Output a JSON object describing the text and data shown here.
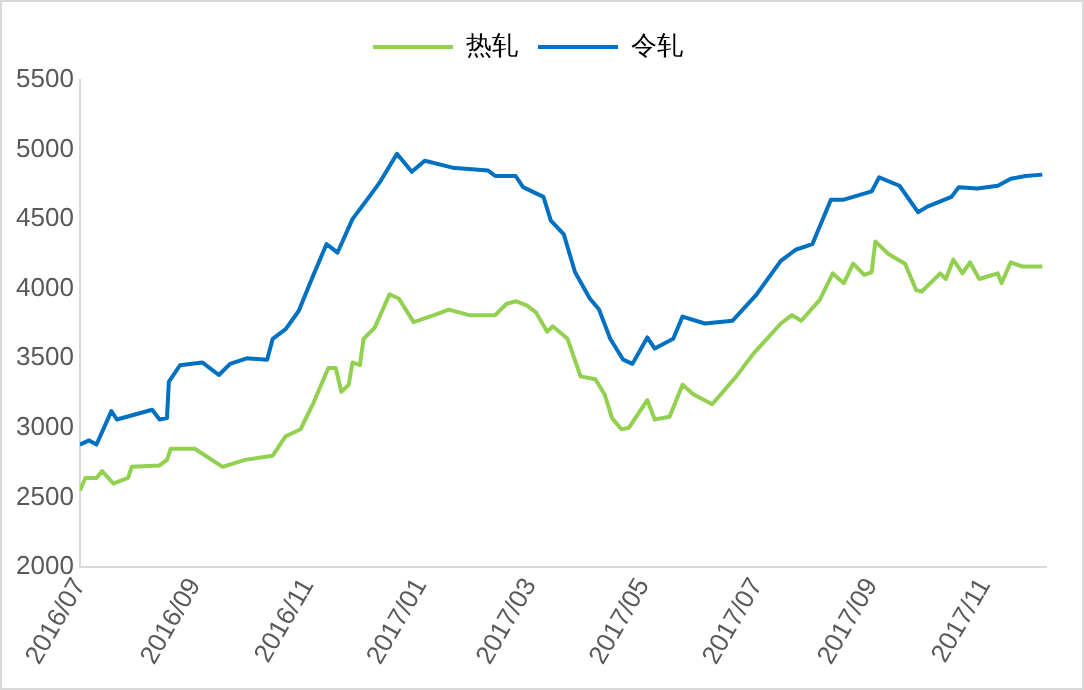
{
  "chart_data": {
    "type": "line",
    "legend": "top",
    "grid": false,
    "marker": "none",
    "line_style": "solid",
    "xlim": [
      "2016-07-01",
      "2017-12-04"
    ],
    "xticks": [
      {
        "value": "2016-07-01",
        "label": "2016/07"
      },
      {
        "value": "2016-09-01",
        "label": "2016/09"
      },
      {
        "value": "2016-11-01",
        "label": "2016/11"
      },
      {
        "value": "2017-01-01",
        "label": "2017/01"
      },
      {
        "value": "2017-03-01",
        "label": "2017/03"
      },
      {
        "value": "2017-05-01",
        "label": "2017/05"
      },
      {
        "value": "2017-07-01",
        "label": "2017/07"
      },
      {
        "value": "2017-09-01",
        "label": "2017/09"
      },
      {
        "value": "2017-11-01",
        "label": "2017/11"
      }
    ],
    "ylim": [
      2000,
      5500
    ],
    "yticks": [
      2000,
      2500,
      3000,
      3500,
      4000,
      4500,
      5000,
      5500
    ],
    "series": [
      {
        "name": "热轧",
        "color": "#92d050",
        "x": [
          "2016-07-01",
          "2016-07-04",
          "2016-07-10",
          "2016-07-13",
          "2016-07-19",
          "2016-07-27",
          "2016-07-29",
          "2016-08-13",
          "2016-08-17",
          "2016-08-19",
          "2016-09-01",
          "2016-09-16",
          "2016-09-28",
          "2016-10-13",
          "2016-10-20",
          "2016-10-28",
          "2016-11-04",
          "2016-11-12",
          "2016-11-16",
          "2016-11-19",
          "2016-11-23",
          "2016-11-25",
          "2016-11-29",
          "2016-12-01",
          "2016-12-07",
          "2016-12-15",
          "2016-12-20",
          "2016-12-28",
          "2017-01-08",
          "2017-01-16",
          "2017-01-27",
          "2017-02-10",
          "2017-02-16",
          "2017-02-21",
          "2017-02-27",
          "2017-03-04",
          "2017-03-10",
          "2017-03-13",
          "2017-03-21",
          "2017-03-28",
          "2017-04-05",
          "2017-04-10",
          "2017-04-14",
          "2017-04-19",
          "2017-04-23",
          "2017-05-03",
          "2017-05-07",
          "2017-05-15",
          "2017-05-22",
          "2017-05-28",
          "2017-06-07",
          "2017-06-20",
          "2017-06-29",
          "2017-07-14",
          "2017-07-20",
          "2017-07-25",
          "2017-08-04",
          "2017-08-11",
          "2017-08-17",
          "2017-08-22",
          "2017-08-28",
          "2017-09-01",
          "2017-09-03",
          "2017-09-10",
          "2017-09-19",
          "2017-09-25",
          "2017-09-28",
          "2017-10-08",
          "2017-10-11",
          "2017-10-15",
          "2017-10-20",
          "2017-10-24",
          "2017-10-29",
          "2017-11-08",
          "2017-11-10",
          "2017-11-15",
          "2017-11-21",
          "2017-12-02"
        ],
        "values": [
          2550,
          2640,
          2640,
          2690,
          2600,
          2640,
          2720,
          2730,
          2770,
          2850,
          2850,
          2720,
          2770,
          2800,
          2940,
          2990,
          3180,
          3430,
          3430,
          3260,
          3310,
          3470,
          3450,
          3640,
          3720,
          3960,
          3930,
          3760,
          3810,
          3850,
          3810,
          3810,
          3890,
          3910,
          3880,
          3830,
          3690,
          3730,
          3640,
          3370,
          3350,
          3240,
          3070,
          2990,
          3000,
          3200,
          3060,
          3080,
          3310,
          3240,
          3170,
          3370,
          3530,
          3750,
          3810,
          3770,
          3920,
          4110,
          4040,
          4180,
          4100,
          4120,
          4340,
          4250,
          4180,
          3990,
          3980,
          4110,
          4070,
          4210,
          4110,
          4190,
          4070,
          4110,
          4040,
          4190,
          4160,
          4160
        ]
      },
      {
        "name": "令轧",
        "color": "#0070c0",
        "x": [
          "2016-07-01",
          "2016-07-06",
          "2016-07-10",
          "2016-07-18",
          "2016-07-21",
          "2016-08-09",
          "2016-08-13",
          "2016-08-17",
          "2016-08-18",
          "2016-08-24",
          "2016-09-05",
          "2016-09-14",
          "2016-09-20",
          "2016-09-29",
          "2016-10-10",
          "2016-10-13",
          "2016-10-20",
          "2016-10-27",
          "2016-11-04",
          "2016-11-11",
          "2016-11-17",
          "2016-11-25",
          "2016-12-04",
          "2016-12-10",
          "2016-12-19",
          "2016-12-27",
          "2017-01-03",
          "2017-01-18",
          "2017-02-06",
          "2017-02-10",
          "2017-02-21",
          "2017-02-25",
          "2017-03-08",
          "2017-03-12",
          "2017-03-19",
          "2017-03-25",
          "2017-04-02",
          "2017-04-07",
          "2017-04-13",
          "2017-04-20",
          "2017-04-25",
          "2017-05-03",
          "2017-05-07",
          "2017-05-17",
          "2017-05-22",
          "2017-06-03",
          "2017-06-18",
          "2017-07-01",
          "2017-07-14",
          "2017-07-22",
          "2017-07-31",
          "2017-08-10",
          "2017-08-17",
          "2017-09-01",
          "2017-09-05",
          "2017-09-16",
          "2017-09-26",
          "2017-10-01",
          "2017-10-14",
          "2017-10-18",
          "2017-10-28",
          "2017-11-08",
          "2017-11-15",
          "2017-11-23",
          "2017-12-02"
        ],
        "values": [
          2880,
          2910,
          2880,
          3120,
          3060,
          3130,
          3060,
          3070,
          3330,
          3450,
          3470,
          3380,
          3460,
          3500,
          3490,
          3640,
          3710,
          3840,
          4100,
          4320,
          4260,
          4500,
          4660,
          4770,
          4970,
          4840,
          4920,
          4870,
          4850,
          4810,
          4810,
          4730,
          4660,
          4490,
          4390,
          4120,
          3930,
          3850,
          3640,
          3490,
          3460,
          3650,
          3570,
          3640,
          3800,
          3750,
          3770,
          3960,
          4200,
          4280,
          4320,
          4640,
          4640,
          4700,
          4800,
          4740,
          4550,
          4590,
          4660,
          4730,
          4720,
          4740,
          4790,
          4810,
          4820
        ]
      }
    ]
  }
}
